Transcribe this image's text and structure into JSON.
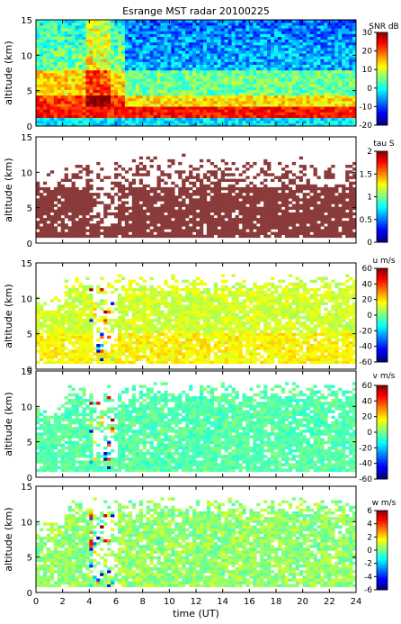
{
  "chart_data": [
    {
      "type": "heatmap",
      "title": "Esrange MST radar 20100225",
      "ylabel": "altitude (km)",
      "xlabel": "",
      "xlim": [
        0,
        24
      ],
      "ylim": [
        0,
        15
      ],
      "yticks": [
        0,
        5,
        10,
        15
      ],
      "colorbar": {
        "label": "SNR dB",
        "range": [
          -20,
          30
        ],
        "ticks": [
          -20,
          -10,
          0,
          10,
          20,
          30
        ]
      }
    },
    {
      "type": "heatmap",
      "title": "",
      "ylabel": "altitude (km)",
      "xlabel": "",
      "xlim": [
        0,
        24
      ],
      "ylim": [
        0,
        15
      ],
      "yticks": [
        0,
        5,
        10,
        15
      ],
      "colorbar": {
        "label": "tau S",
        "range": [
          0,
          2
        ],
        "ticks": [
          0,
          0.5,
          1,
          1.5,
          2
        ],
        "tick_labels": [
          "0",
          "0.5",
          "1",
          "1.5",
          "2"
        ]
      }
    },
    {
      "type": "heatmap",
      "title": "",
      "ylabel": "altitude (km)",
      "xlabel": "",
      "xlim": [
        0,
        24
      ],
      "ylim": [
        0,
        15
      ],
      "yticks": [
        0,
        5,
        10,
        15
      ],
      "colorbar": {
        "label": "u m/s",
        "range": [
          -60,
          60
        ],
        "ticks": [
          -60,
          -40,
          -20,
          0,
          20,
          40,
          60
        ]
      }
    },
    {
      "type": "heatmap",
      "title": "",
      "ylabel": "altitude (km)",
      "xlabel": "",
      "xlim": [
        0,
        24
      ],
      "ylim": [
        0,
        15
      ],
      "yticks": [
        0,
        5,
        10,
        15
      ],
      "colorbar": {
        "label": "v m/s",
        "range": [
          -60,
          60
        ],
        "ticks": [
          -60,
          -40,
          -20,
          0,
          20,
          40,
          60
        ]
      }
    },
    {
      "type": "heatmap",
      "title": "",
      "ylabel": "altitude (km)",
      "xlabel": "time (UT)",
      "xlim": [
        0,
        24
      ],
      "ylim": [
        0,
        15
      ],
      "yticks": [
        0,
        5,
        10,
        15
      ],
      "xticks": [
        0,
        2,
        4,
        6,
        8,
        10,
        12,
        14,
        16,
        18,
        20,
        22,
        24
      ],
      "colorbar": {
        "label": "w m/s",
        "range": [
          -6,
          6
        ],
        "ticks": [
          -6,
          -4,
          -2,
          0,
          2,
          4,
          6
        ]
      }
    }
  ],
  "colors": {
    "colormap": [
      "#000080",
      "#0000ff",
      "#0080ff",
      "#00ffff",
      "#80ff80",
      "#ffff00",
      "#ff8000",
      "#ff0000",
      "#800000"
    ],
    "tau_dominant": "#8b3a3a",
    "u_dominant": "#d9f27a",
    "v_dominant": "#9af0c8",
    "w_dominant": "#b0f080"
  }
}
